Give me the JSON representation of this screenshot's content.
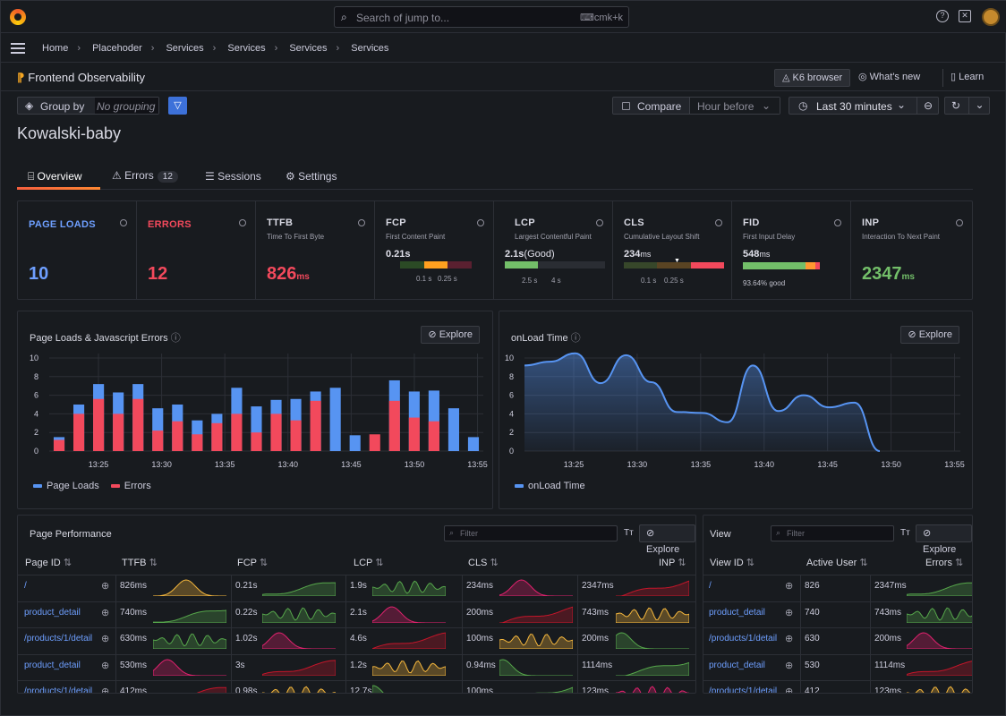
{
  "topbar": {
    "search_placeholder": "Search of jump to...",
    "search_shortcut": "⌨cmk+k"
  },
  "breadcrumb": [
    "Home",
    "Placehoder",
    "Services",
    "Services",
    "Services",
    "Services"
  ],
  "app": {
    "title": "Frontend Observability",
    "k6_label": "K6 browser",
    "whats_new_label": "What's new",
    "learn_label": "Learn"
  },
  "controls": {
    "group_by_label": "Group by",
    "group_by_value": "No grouping",
    "compare_label": "Compare",
    "compare_option": "Hour before",
    "time_range": "Last 30 minutes"
  },
  "page_title": "Kowalski-baby",
  "tabs": [
    {
      "label": "Overview"
    },
    {
      "label": "Errors",
      "badge": "12"
    },
    {
      "label": "Sessions"
    },
    {
      "label": "Settings"
    }
  ],
  "stats": {
    "page_loads": {
      "title": "PAGE LOADS",
      "value": "10"
    },
    "errors": {
      "title": "ERRORS",
      "value": "12"
    },
    "ttfb": {
      "title": "TTFB",
      "subtitle": "Time To First Byte",
      "value": "826",
      "unit": "ms"
    },
    "fcp": {
      "title": "FCP",
      "subtitle": "First Content Paint",
      "value": "0.21s",
      "tick1": "0.1 s",
      "tick2": "0.25 s"
    },
    "lcp": {
      "title": "LCP",
      "subtitle": "Largest Contentful Paint",
      "value": "2.1s",
      "qualifier": "(Good)",
      "tick1": "2.5 s",
      "tick2": "4 s"
    },
    "cls": {
      "title": "CLS",
      "subtitle": "Cumulative Layout Shift",
      "value": "234",
      "unit": "ms",
      "tick1": "0.1 s",
      "tick2": "0.25 s"
    },
    "fid": {
      "title": "FID",
      "subtitle": "First Input Delay",
      "value": "548",
      "unit": "ms",
      "good": "93.64% good"
    },
    "inp": {
      "title": "INP",
      "subtitle": "Interaction To Next Paint",
      "value": "2347",
      "unit": "ms"
    }
  },
  "colors": {
    "blue": "#5794f2",
    "red": "#f2495c",
    "green": "#73bf69",
    "orange": "#ff9830"
  },
  "explore_label": "Explore",
  "chart_data": [
    {
      "type": "bar",
      "title": "Page Loads & Javascript Errors",
      "ylim": [
        0,
        10
      ],
      "yticks": [
        "0",
        "2",
        "4",
        "6",
        "8",
        "10"
      ],
      "xticks": [
        "13:25",
        "13:30",
        "13:35",
        "13:40",
        "13:45",
        "13:50",
        "13:55"
      ],
      "series": [
        {
          "name": "Page Loads",
          "color": "#5794f2",
          "values": [
            1.5,
            5,
            7.2,
            6.3,
            7.2,
            4.6,
            5,
            3.3,
            4,
            6.8,
            4.8,
            5.5,
            5.6,
            6.4,
            6.8,
            1.7,
            0,
            7.6,
            6.4,
            6.5,
            4.6,
            1.5
          ]
        },
        {
          "name": "Errors",
          "color": "#f2495c",
          "values": [
            1.2,
            4,
            5.6,
            4,
            5.6,
            2.2,
            3.2,
            1.8,
            3,
            4,
            2,
            4,
            3.3,
            5.4,
            0,
            0,
            1.8,
            5.4,
            3.6,
            3.2,
            0,
            0
          ]
        }
      ]
    },
    {
      "type": "area",
      "title": "onLoad Time",
      "ylim": [
        0,
        10
      ],
      "yticks": [
        "0",
        "2",
        "4",
        "6",
        "8",
        "10"
      ],
      "xticks": [
        "13:25",
        "13:30",
        "13:35",
        "13:40",
        "13:45",
        "13:50",
        "13:55"
      ],
      "series": [
        {
          "name": "onLoad Time",
          "color": "#5794f2",
          "values": [
            9.2,
            9.6,
            10.5,
            7.3,
            10.3,
            7.4,
            4.2,
            4.1,
            3.1,
            9.2,
            4.3,
            6,
            4.7,
            5.2,
            0
          ]
        }
      ]
    }
  ],
  "table_page_perf": {
    "title": "Page Performance",
    "filter_placeholder": "Filter",
    "tt": "Tт",
    "headers": [
      "Page ID",
      "TTFB",
      "FCP",
      "LCP",
      "CLS",
      "INP"
    ],
    "rows": [
      {
        "id": "/",
        "ttfb": "826ms",
        "fcp": "0.21s",
        "lcp": "1.9s",
        "cls": "234ms",
        "inp": "2347ms"
      },
      {
        "id": "product_detail",
        "ttfb": "740ms",
        "fcp": "0.22s",
        "lcp": "2.1s",
        "cls": "200ms",
        "inp": "743ms"
      },
      {
        "id": "/products/1/detail",
        "ttfb": "630ms",
        "fcp": "1.02s",
        "lcp": "4.6s",
        "cls": "100ms",
        "inp": "200ms"
      },
      {
        "id": "product_detail",
        "ttfb": "530ms",
        "fcp": "3s",
        "lcp": "1.2s",
        "cls": "0.94ms",
        "inp": "1114ms"
      },
      {
        "id": "/products/1/detail",
        "ttfb": "412ms",
        "fcp": "0.98s",
        "lcp": "12.7s",
        "cls": "100ms",
        "inp": "123ms"
      }
    ]
  },
  "table_view": {
    "title": "View",
    "filter_placeholder": "Filter",
    "tt": "Tт",
    "headers": [
      "View ID",
      "Active User",
      "Errors"
    ],
    "rows": [
      {
        "id": "/",
        "users": "826",
        "errors": "2347ms"
      },
      {
        "id": "product_detail",
        "users": "740",
        "errors": "743ms"
      },
      {
        "id": "/products/1/detail",
        "users": "630",
        "errors": "200ms"
      },
      {
        "id": "product_detail",
        "users": "530",
        "errors": "1114ms"
      },
      {
        "id": "/products/1/detail",
        "users": "412",
        "errors": "123ms"
      }
    ]
  }
}
